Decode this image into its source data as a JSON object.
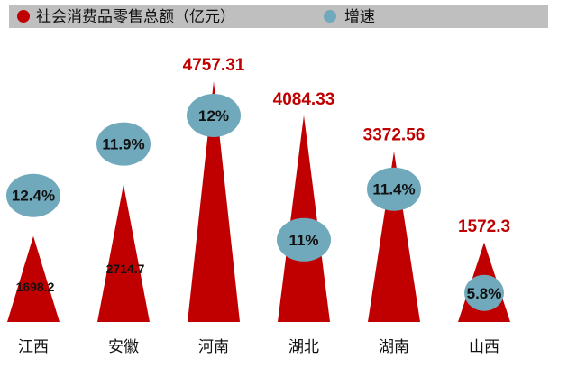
{
  "chart_data": {
    "type": "bar",
    "categories": [
      "江西",
      "安徽",
      "河南",
      "湖北",
      "湖南",
      "山西"
    ],
    "series": [
      {
        "name": "社会消费品零售总额（亿元）",
        "values": [
          1698.2,
          2714.7,
          4757.31,
          4084.33,
          3372.56,
          1572.3
        ],
        "value_labels": [
          "1698.2",
          "2714.7",
          "4757.31",
          "4084.33",
          "3372.56",
          "1572.3"
        ],
        "color": "#c00000"
      },
      {
        "name": "增速",
        "values": [
          12.4,
          11.9,
          12,
          11,
          11.4,
          5.8
        ],
        "value_labels": [
          "12.4%",
          "11.9%",
          "12%",
          "11%",
          "11.4%",
          "5.8%"
        ],
        "color": "#6fa9bb"
      }
    ],
    "legend_position": "top",
    "grid": false
  }
}
